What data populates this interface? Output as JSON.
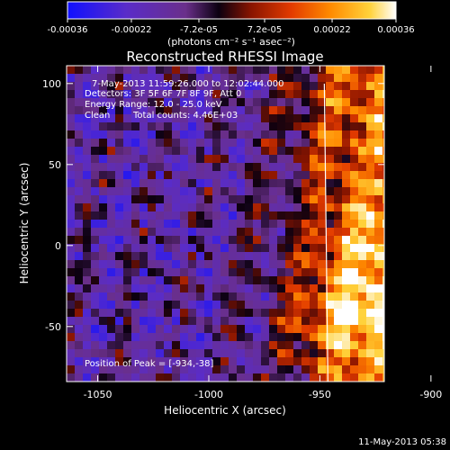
{
  "colorbar": {
    "tick_values": [
      -0.00036,
      -0.00022,
      -7.2e-05,
      7.2e-05,
      0.00022,
      0.00036
    ],
    "tick_labels": [
      "-0.00036",
      "-0.00022",
      "-7.2e-05",
      "7.2e-05",
      "0.00022",
      "0.00036"
    ],
    "units_label": "(photons cm⁻² s⁻¹ asec⁻²)",
    "range": [
      -0.00036,
      0.00036
    ]
  },
  "info": {
    "time_range": "7-May-2013 11:59:26.000 to 12:02:44.000",
    "detectors": "Detectors: 3F 5F 6F 7F 8F 9F, Att 0",
    "energy": "Energy Range: 12.0 - 25.0 keV",
    "algorithm": "Clean",
    "counts": "Total counts: 4.46E+03",
    "peak": "Position of Peak = [-934,-38]"
  },
  "footer": {
    "timestamp": "11-May-2013 05:38"
  },
  "chart_data": {
    "type": "heatmap",
    "title": "Reconstructed RHESSI Image",
    "xlabel": "Heliocentric X (arcsec)",
    "ylabel": "Heliocentric Y (arcsec)",
    "xlim": [
      -1064,
      -921
    ],
    "ylim": [
      -84,
      111
    ],
    "xticks": [
      -1050,
      -1000,
      -950,
      -900
    ],
    "xtick_labels": [
      "-1050",
      "-1000",
      "-950",
      "-900"
    ],
    "yticks": [
      -50,
      0,
      50,
      100
    ],
    "ytick_labels": [
      "-50",
      "0",
      "50",
      "100"
    ],
    "colormap": "blue-purple-red-yellow-white",
    "peak_position": [
      -934,
      -38
    ],
    "limb_line_x": -948,
    "grid": false
  }
}
